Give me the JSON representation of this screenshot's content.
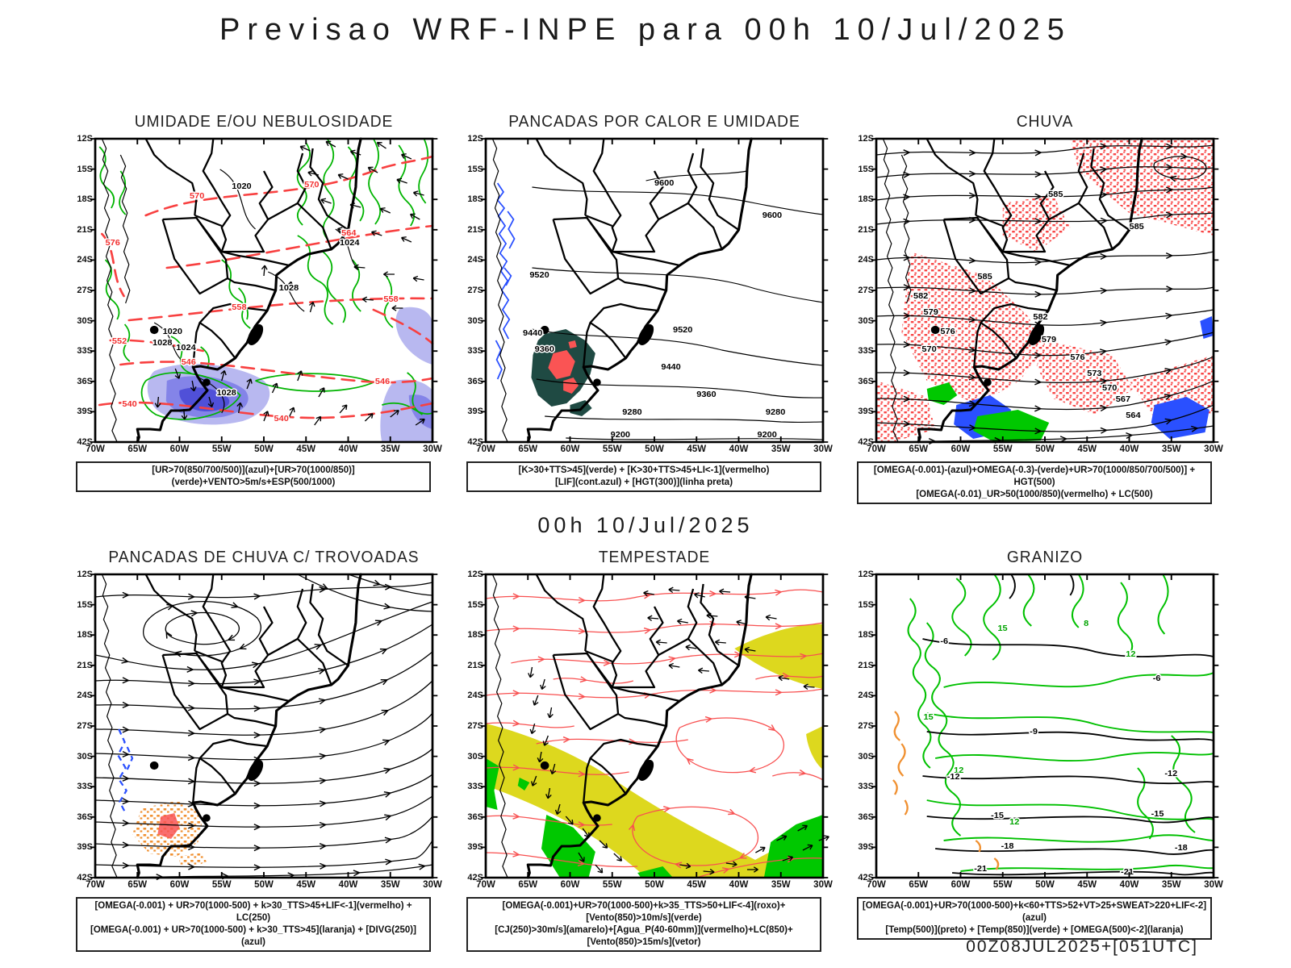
{
  "page": {
    "title": "Previsao WRF-INPE  para 00h 10/Jul/2025",
    "mid_label": "00h 10/Jul/2025",
    "footer": "00Z08JUL2025+[051UTC]"
  },
  "axes": {
    "lat": [
      "12S",
      "15S",
      "18S",
      "21S",
      "24S",
      "27S",
      "30S",
      "33S",
      "36S",
      "39S",
      "42S"
    ],
    "lon": [
      "70W",
      "65W",
      "60W",
      "55W",
      "50W",
      "45W",
      "40W",
      "35W",
      "30W"
    ]
  },
  "colors": {
    "green_contour": "#00b400",
    "red_dashed": "#f84040",
    "blue_contour": "#2a50ff",
    "humidity_shade_light": "#b8b8f0",
    "humidity_shade_mid": "#8484e8",
    "humidity_shade_deep": "#5050d8",
    "convective_dark_teal": "#1f4a43",
    "convective_red": "#fa5454",
    "rain_speckle_red": "#f84444",
    "orange_speckle": "#f09030",
    "jet_yellow": "#ddd81e",
    "wind_green": "#00c800",
    "stream_red": "#f85050",
    "black": "#000000"
  },
  "panels": [
    {
      "title": "UMIDADE E/OU NEBULOSIDADE",
      "caption": [
        "[UR>70(850/700/500)](azul)+[UR>70(1000/850)](verde)+VENTO>5m/s+ESP(500/1000)"
      ],
      "labels": {
        "red": [
          "570",
          "576",
          "564",
          "558",
          "552",
          "546",
          "540"
        ],
        "black": [
          "1020",
          "1024",
          "1028"
        ]
      }
    },
    {
      "title": "PANCADAS POR CALOR E UMIDADE",
      "caption": [
        "[K>30+TTS>45](verde) + [K>30+TTS>45+LI<-1](vermelho)",
        "[LIF](cont.azul) + [HGT(300)](linha preta)"
      ],
      "labels": {
        "hgt": [
          "9600",
          "9520",
          "9440",
          "9360",
          "9280",
          "9200"
        ]
      }
    },
    {
      "title": "CHUVA",
      "caption": [
        "[OMEGA(-0.001)-(azul)+OMEGA(-0.3)-(verde)+UR>70(1000/850/700/500)] + HGT(500)",
        "[OMEGA(-0.01)_UR>50(1000/850)(vermelho) + LC(500)"
      ],
      "labels": {
        "hgt": [
          "585",
          "582",
          "579",
          "576",
          "573",
          "570",
          "567",
          "564"
        ]
      }
    },
    {
      "title": "PANCADAS DE CHUVA C/ TROVOADAS",
      "caption": [
        "[OMEGA(-0.001) + UR>70(1000-500) + k>30_TTS>45+LIF<-1](vermelho) + LC(250)",
        "[OMEGA(-0.001) + UR>70(1000-500) + k>30_TTS>45](laranja) + [DIVG(250)](azul)"
      ],
      "labels": {}
    },
    {
      "title": "TEMPESTADE",
      "caption": [
        "[OMEGA(-0.001)+UR>70(1000-500)+k>35_TTS>50+LIF<-4](roxo)+[Vento(850)>10m/s](verde)",
        "[CJ(250)>30m/s](amarelo)+[Agua_P(40-60mm)](vermelho)+LC(850)+[Vento(850)>15m/s](vetor)"
      ],
      "labels": {}
    },
    {
      "title": "GRANIZO",
      "caption": [
        "[OMEGA(-0.001)+UR>70(1000-500)+k<60+TTS>52+VT>25+SWEAT>220+LIF<-2](azul)",
        "[Temp(500)](preto) + [Temp(850)](verde) + [OMEGA(500)<-2](laranja)"
      ],
      "labels": {
        "green": [
          "15",
          "12",
          "8"
        ],
        "black": [
          "-6",
          "-9",
          "-12",
          "-15",
          "-18",
          "-21"
        ]
      }
    }
  ]
}
